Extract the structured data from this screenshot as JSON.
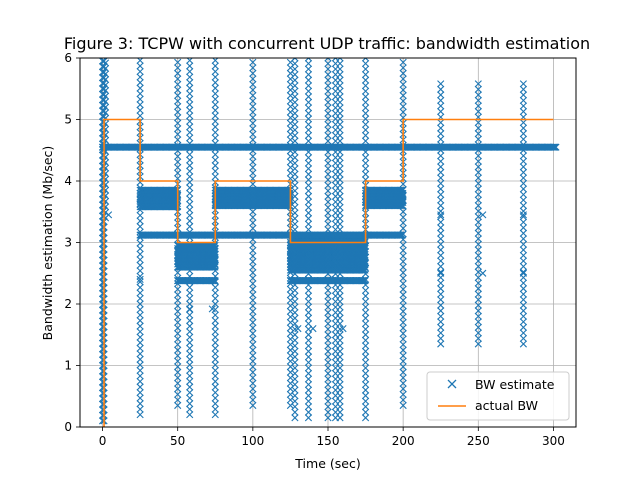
{
  "chart_data": {
    "type": "scatter",
    "title": "Figure 3: TCPW with concurrent UDP traffic: bandwidth estimation",
    "xlabel": "Time (sec)",
    "ylabel": "Bandwidth estimation (Mb/sec)",
    "xlim": [
      -15,
      315
    ],
    "ylim": [
      0,
      6
    ],
    "xticks": [
      0,
      50,
      100,
      150,
      200,
      250,
      300
    ],
    "yticks": [
      0,
      1,
      2,
      3,
      4,
      5,
      6
    ],
    "grid": true,
    "legend_position": "lower-right",
    "colors": {
      "bw_estimate": "#1f77b4",
      "actual_bw": "#ff7f0e"
    },
    "series": [
      {
        "name": "actual BW",
        "kind": "step-line",
        "x": [
          0,
          1,
          1,
          25,
          25,
          50,
          50,
          75,
          75,
          125,
          125,
          175,
          175,
          200,
          200,
          300
        ],
        "y": [
          0,
          0,
          5,
          5,
          4,
          4,
          3,
          3,
          4,
          4,
          3,
          3,
          4,
          4,
          5,
          5
        ]
      },
      {
        "name": "BW estimate",
        "kind": "scatter-x",
        "dense_bands": [
          {
            "x": [
              0,
              25
            ],
            "y": [
              4.55,
              4.55
            ]
          },
          {
            "x": [
              25,
              50
            ],
            "y": [
              3.58,
              3.85
            ]
          },
          {
            "x": [
              50,
              75
            ],
            "y": [
              2.6,
              2.95
            ]
          },
          {
            "x": [
              75,
              125
            ],
            "y": [
              3.6,
              3.85
            ]
          },
          {
            "x": [
              125,
              175
            ],
            "y": [
              2.55,
              3.05
            ]
          },
          {
            "x": [
              175,
              200
            ],
            "y": [
              3.6,
              3.85
            ]
          },
          {
            "x": [
              200,
              302
            ],
            "y": [
              4.55,
              4.55
            ]
          },
          {
            "x": [
              25,
              200
            ],
            "y": [
              4.55,
              4.55
            ]
          },
          {
            "x": [
              25,
              200
            ],
            "y": [
              3.12,
              3.12
            ]
          },
          {
            "x": [
              50,
              75
            ],
            "y": [
              2.38,
              2.38
            ]
          },
          {
            "x": [
              125,
              175
            ],
            "y": [
              2.38,
              2.38
            ]
          }
        ],
        "spike_x": [
          0,
          1,
          2,
          25,
          50,
          58,
          75,
          100,
          125,
          128,
          137,
          150,
          155,
          158,
          175,
          200,
          225,
          250,
          280
        ],
        "spike_ranges": [
          [
            0.1,
            6
          ],
          [
            0.1,
            6
          ],
          [
            3.4,
            6
          ],
          [
            0.2,
            6
          ],
          [
            0.35,
            6
          ],
          [
            0.2,
            6
          ],
          [
            0.2,
            6
          ],
          [
            0.35,
            6
          ],
          [
            0.35,
            6
          ],
          [
            0.15,
            6
          ],
          [
            0.15,
            6
          ],
          [
            0.15,
            6
          ],
          [
            0.15,
            6
          ],
          [
            0.15,
            6
          ],
          [
            0.15,
            6
          ],
          [
            0.35,
            6
          ],
          [
            1.35,
            5.6
          ],
          [
            1.35,
            5.6
          ],
          [
            1.35,
            5.6
          ]
        ],
        "isolated_points": [
          {
            "x": 4,
            "y": 3.45
          },
          {
            "x": 25,
            "y": 2.4
          },
          {
            "x": 58,
            "y": 1.92
          },
          {
            "x": 73,
            "y": 1.92
          },
          {
            "x": 225,
            "y": 3.45
          },
          {
            "x": 253,
            "y": 3.45
          },
          {
            "x": 280,
            "y": 3.45
          },
          {
            "x": 225,
            "y": 2.5
          },
          {
            "x": 253,
            "y": 2.5
          },
          {
            "x": 280,
            "y": 2.5
          },
          {
            "x": 140,
            "y": 1.6
          },
          {
            "x": 160,
            "y": 1.6
          },
          {
            "x": 130,
            "y": 1.6
          }
        ]
      }
    ]
  },
  "legend": {
    "items": [
      {
        "label": "BW estimate",
        "marker": "x"
      },
      {
        "label": "actual BW",
        "marker": "line"
      }
    ]
  }
}
